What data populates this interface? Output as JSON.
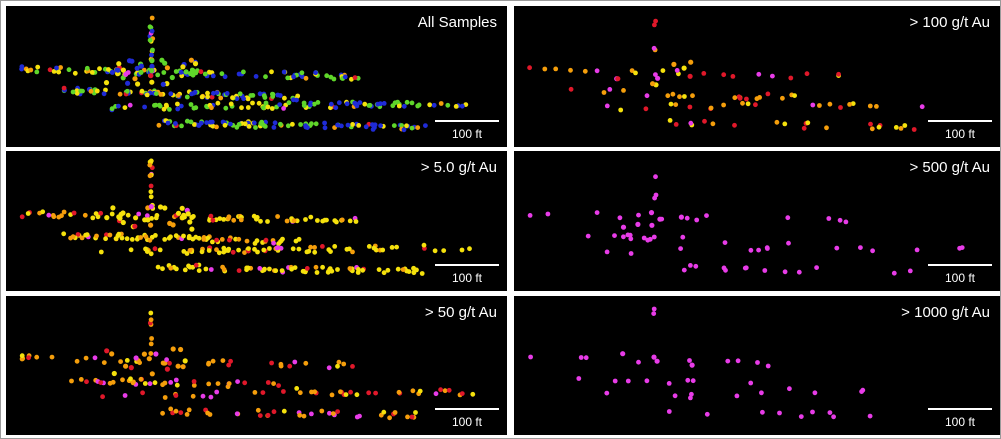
{
  "panels": [
    {
      "title": "All Samples",
      "scale_label": "100 ft"
    },
    {
      "title": "> 100 g/t Au",
      "scale_label": "100 ft"
    },
    {
      "title": "> 5.0 g/t Au",
      "scale_label": "100 ft"
    },
    {
      "title": "> 500 g/t Au",
      "scale_label": "100 ft"
    },
    {
      "title": "> 50 g/t Au",
      "scale_label": "100 ft"
    },
    {
      "title": "> 1000 g/t Au",
      "scale_label": "100 ft"
    }
  ],
  "colors": {
    "background": "#000000",
    "low_grade": "#1f2bd6",
    "lowmid_grade": "#5fd62a",
    "mid_grade": "#f5e10c",
    "midhigh_grade": "#f59e0b",
    "high_grade": "#e0182a",
    "very_high_grade": "#e83ce8",
    "scale_bar": "#ffffff"
  }
}
